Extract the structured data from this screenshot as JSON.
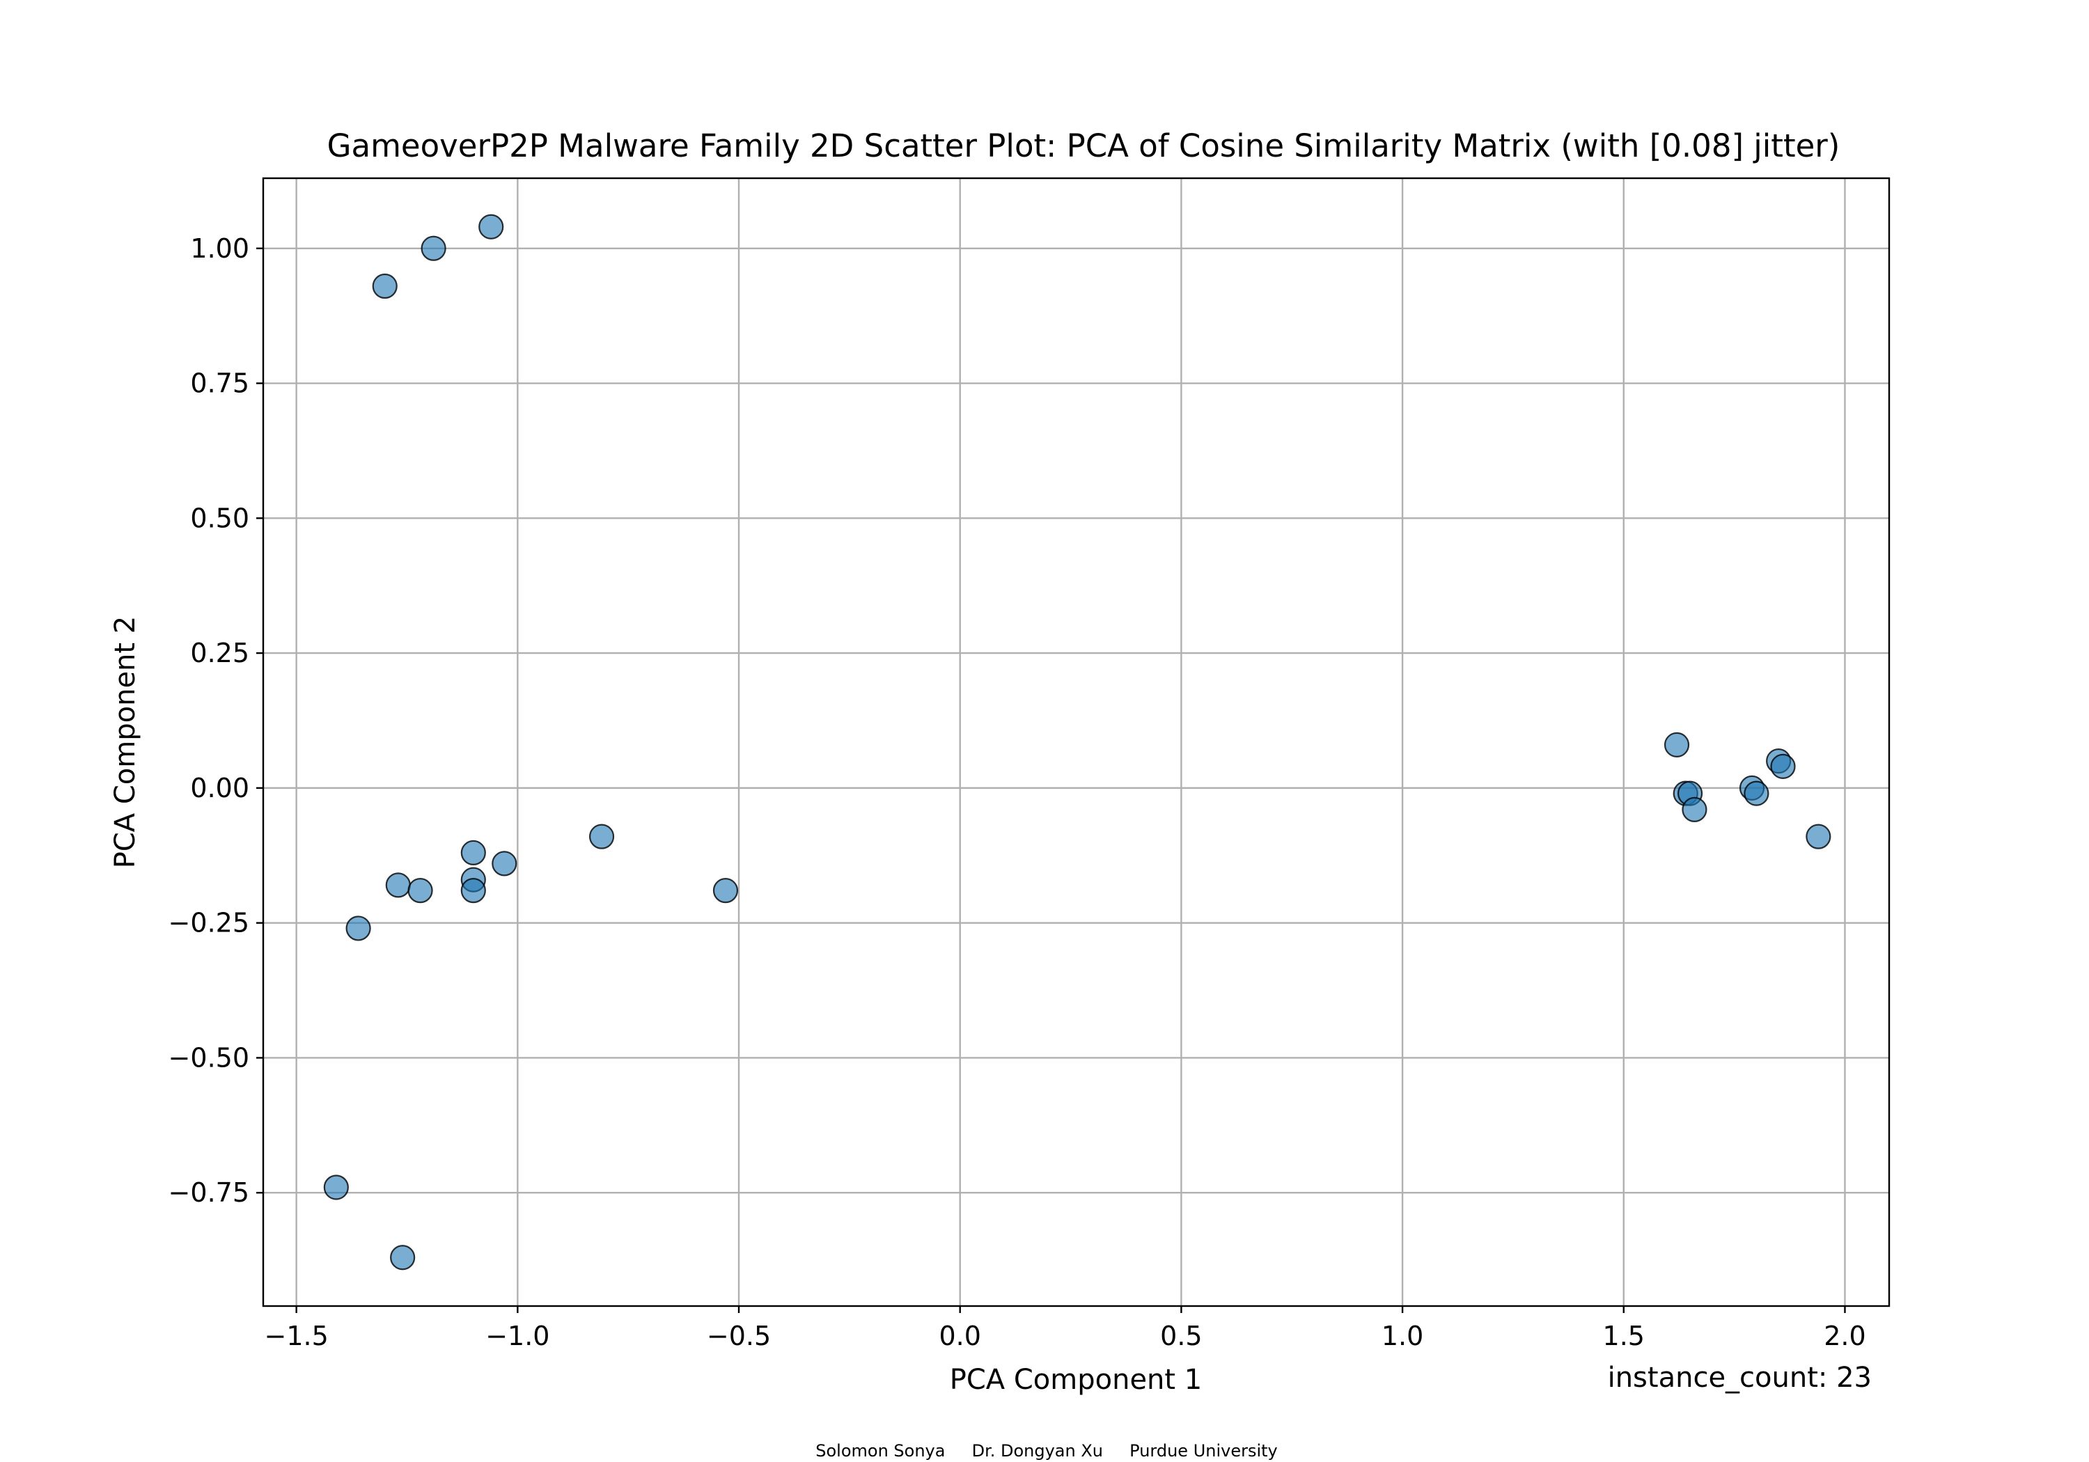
{
  "chart_data": {
    "type": "scatter",
    "title": "GameoverP2P Malware Family 2D Scatter Plot: PCA of Cosine Similarity Matrix (with [0.08] jitter)",
    "xlabel": "PCA Component 1",
    "ylabel": "PCA Component 2",
    "xlim": [
      -1.575,
      2.1
    ],
    "ylim": [
      -0.96,
      1.13
    ],
    "xticks": [
      -1.5,
      -1.0,
      -0.5,
      0.0,
      0.5,
      1.0,
      1.5,
      2.0
    ],
    "xtick_labels": [
      "−1.5",
      "−1.0",
      "−0.5",
      "0.0",
      "0.5",
      "1.0",
      "1.5",
      "2.0"
    ],
    "yticks": [
      -0.75,
      -0.5,
      -0.25,
      0.0,
      0.25,
      0.5,
      0.75,
      1.0
    ],
    "ytick_labels": [
      "−0.75",
      "−0.50",
      "−0.25",
      "0.00",
      "0.25",
      "0.50",
      "0.75",
      "1.00"
    ],
    "grid": true,
    "point_color": "#1f77b4",
    "point_edge_color": "#000000",
    "points": [
      {
        "x": -1.3,
        "y": 0.93
      },
      {
        "x": -1.19,
        "y": 1.0
      },
      {
        "x": -1.06,
        "y": 1.04
      },
      {
        "x": -1.36,
        "y": -0.26
      },
      {
        "x": -1.27,
        "y": -0.18
      },
      {
        "x": -1.22,
        "y": -0.19
      },
      {
        "x": -1.1,
        "y": -0.12
      },
      {
        "x": -1.1,
        "y": -0.17
      },
      {
        "x": -1.1,
        "y": -0.19
      },
      {
        "x": -1.03,
        "y": -0.14
      },
      {
        "x": -0.81,
        "y": -0.09
      },
      {
        "x": -0.53,
        "y": -0.19
      },
      {
        "x": -1.41,
        "y": -0.74
      },
      {
        "x": -1.26,
        "y": -0.87
      },
      {
        "x": 1.62,
        "y": 0.08
      },
      {
        "x": 1.64,
        "y": -0.01
      },
      {
        "x": 1.65,
        "y": -0.01
      },
      {
        "x": 1.66,
        "y": -0.04
      },
      {
        "x": 1.79,
        "y": 0.0
      },
      {
        "x": 1.8,
        "y": -0.01
      },
      {
        "x": 1.85,
        "y": 0.05
      },
      {
        "x": 1.86,
        "y": 0.04
      },
      {
        "x": 1.94,
        "y": -0.09
      }
    ],
    "annotation": "instance_count: 23"
  },
  "footer": {
    "credits": "Solomon Sonya     Dr. Dongyan Xu     Purdue University"
  }
}
